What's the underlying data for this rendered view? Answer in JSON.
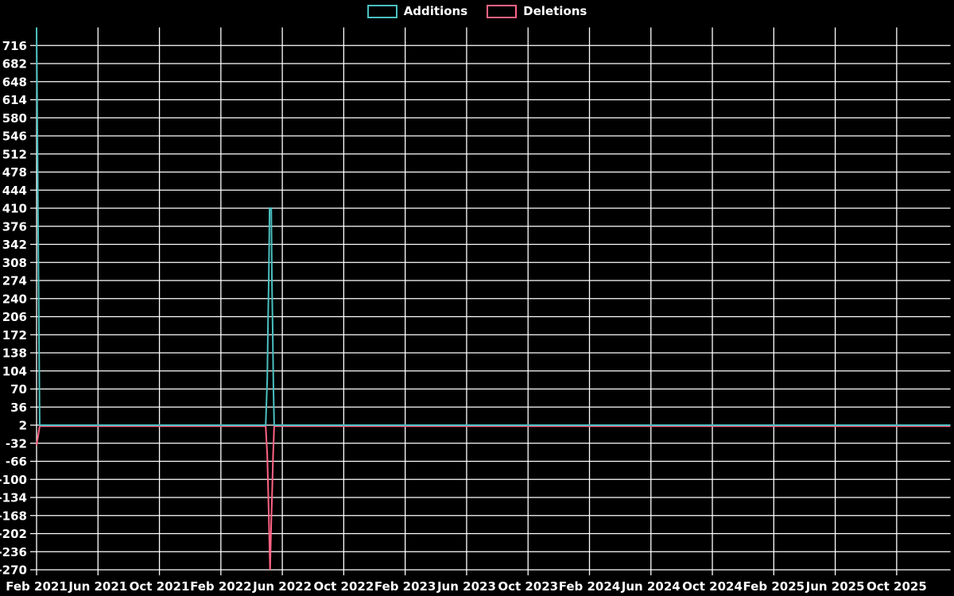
{
  "legend": {
    "items": [
      {
        "label": "Additions",
        "color": "#4bc0c0"
      },
      {
        "label": "Deletions",
        "color": "#ff6384"
      }
    ]
  },
  "chart_data": {
    "type": "line",
    "title": "",
    "xlabel": "",
    "ylabel": "",
    "background_color": "#000000",
    "grid_color": "#ffffff",
    "text_color": "#ffffff",
    "grid": true,
    "legend_position": "top",
    "x_tick_labels": [
      "Feb 2021",
      "Jun 2021",
      "Oct 2021",
      "Feb 2022",
      "Jun 2022",
      "Oct 2022",
      "Feb 2023",
      "Jun 2023",
      "Oct 2023",
      "Feb 2024",
      "Jun 2024",
      "Oct 2024",
      "Feb 2025",
      "Jun 2025",
      "Oct 2025"
    ],
    "x_tick_months": [
      0,
      4,
      8,
      12,
      16,
      20,
      24,
      28,
      32,
      36,
      40,
      44,
      48,
      52,
      56
    ],
    "x_range_months": [
      0,
      59.5
    ],
    "y_ticks": [
      716,
      682,
      648,
      614,
      580,
      546,
      512,
      478,
      444,
      410,
      376,
      342,
      308,
      274,
      240,
      206,
      172,
      138,
      104,
      70,
      36,
      2,
      -32,
      -66,
      -100,
      -134,
      -168,
      -202,
      -236,
      -270
    ],
    "y_range": [
      -270,
      750
    ],
    "series": [
      {
        "name": "Additions",
        "color": "#4bc0c0",
        "points": [
          [
            0,
            750
          ],
          [
            0.2,
            2
          ],
          [
            14.92,
            2
          ],
          [
            15.02,
            90
          ],
          [
            15.07,
            190
          ],
          [
            15.12,
            280
          ],
          [
            15.17,
            410
          ],
          [
            15.28,
            410
          ],
          [
            15.32,
            280
          ],
          [
            15.37,
            190
          ],
          [
            15.42,
            75
          ],
          [
            15.47,
            2
          ],
          [
            59.5,
            2
          ]
        ]
      },
      {
        "name": "Deletions",
        "color": "#ff6384",
        "points": [
          [
            0,
            -36
          ],
          [
            0.2,
            0
          ],
          [
            14.92,
            0
          ],
          [
            15.02,
            -55
          ],
          [
            15.08,
            -120
          ],
          [
            15.13,
            -180
          ],
          [
            15.2,
            -270
          ],
          [
            15.28,
            -180
          ],
          [
            15.34,
            -120
          ],
          [
            15.4,
            -55
          ],
          [
            15.47,
            0
          ],
          [
            59.5,
            0
          ]
        ]
      }
    ]
  }
}
